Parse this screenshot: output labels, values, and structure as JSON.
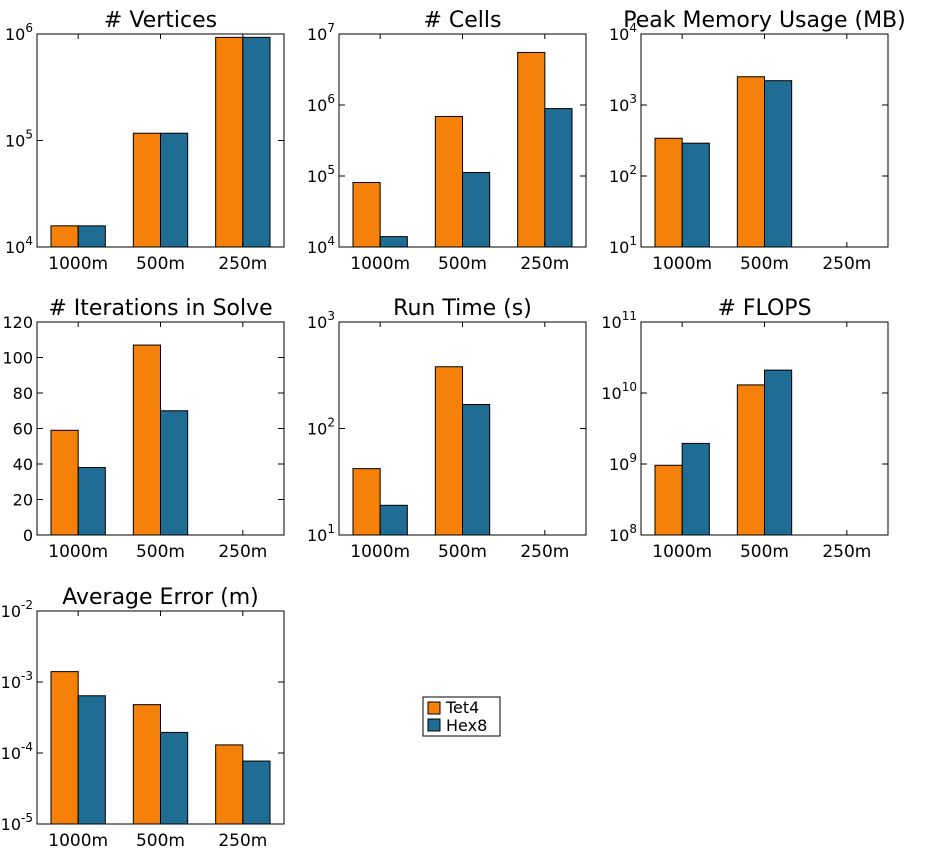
{
  "legend": {
    "placement": "center",
    "entries": [
      {
        "label": "Tet4",
        "color": "#f5800a"
      },
      {
        "label": "Hex8",
        "color": "#1f6c94"
      }
    ]
  },
  "chart_data": [
    {
      "type": "bar",
      "title": "# Vertices",
      "yscale": "log",
      "ylim": [
        10000,
        1000000
      ],
      "ytick_labels": [
        {
          "base": "10",
          "exp": "4"
        },
        {
          "base": "10",
          "exp": "5"
        },
        {
          "base": "10",
          "exp": "6"
        }
      ],
      "categories": [
        "1000m",
        "500m",
        "250m"
      ],
      "series": [
        {
          "name": "Tet4",
          "color": "#f5800a",
          "values": [
            15800,
            117000,
            930000
          ]
        },
        {
          "name": "Hex8",
          "color": "#1f6c94",
          "values": [
            15800,
            117000,
            930000
          ]
        }
      ]
    },
    {
      "type": "bar",
      "title": "# Cells",
      "yscale": "log",
      "ylim": [
        10000,
        10000000
      ],
      "ytick_labels": [
        {
          "base": "10",
          "exp": "4"
        },
        {
          "base": "10",
          "exp": "5"
        },
        {
          "base": "10",
          "exp": "6"
        },
        {
          "base": "10",
          "exp": "7"
        }
      ],
      "categories": [
        "1000m",
        "500m",
        "250m"
      ],
      "series": [
        {
          "name": "Tet4",
          "color": "#f5800a",
          "values": [
            81000,
            690000,
            5500000
          ]
        },
        {
          "name": "Hex8",
          "color": "#1f6c94",
          "values": [
            14000,
            112000,
            890000
          ]
        }
      ]
    },
    {
      "type": "bar",
      "title": "Peak Memory Usage (MB)",
      "yscale": "log",
      "ylim": [
        10,
        10000
      ],
      "ytick_labels": [
        {
          "base": "10",
          "exp": "1"
        },
        {
          "base": "10",
          "exp": "2"
        },
        {
          "base": "10",
          "exp": "3"
        },
        {
          "base": "10",
          "exp": "4"
        }
      ],
      "categories": [
        "1000m",
        "500m",
        "250m"
      ],
      "series": [
        {
          "name": "Tet4",
          "color": "#f5800a",
          "values": [
            340,
            2500,
            null
          ]
        },
        {
          "name": "Hex8",
          "color": "#1f6c94",
          "values": [
            290,
            2200,
            null
          ]
        }
      ]
    },
    {
      "type": "bar",
      "title": "# Iterations in Solve",
      "yscale": "linear",
      "ylim": [
        0,
        120
      ],
      "ytick_labels": [
        {
          "base": "0"
        },
        {
          "base": "20"
        },
        {
          "base": "40"
        },
        {
          "base": "60"
        },
        {
          "base": "80"
        },
        {
          "base": "100"
        },
        {
          "base": "120"
        }
      ],
      "categories": [
        "1000m",
        "500m",
        "250m"
      ],
      "series": [
        {
          "name": "Tet4",
          "color": "#f5800a",
          "values": [
            59,
            107,
            null
          ]
        },
        {
          "name": "Hex8",
          "color": "#1f6c94",
          "values": [
            38,
            70,
            null
          ]
        }
      ]
    },
    {
      "type": "bar",
      "title": "Run Time (s)",
      "yscale": "log",
      "ylim": [
        10,
        1000
      ],
      "ytick_labels": [
        {
          "base": "10",
          "exp": "1"
        },
        {
          "base": "10",
          "exp": "2"
        },
        {
          "base": "10",
          "exp": "3"
        }
      ],
      "categories": [
        "1000m",
        "500m",
        "250m"
      ],
      "series": [
        {
          "name": "Tet4",
          "color": "#f5800a",
          "values": [
            42,
            380,
            null
          ]
        },
        {
          "name": "Hex8",
          "color": "#1f6c94",
          "values": [
            19,
            168,
            null
          ]
        }
      ]
    },
    {
      "type": "bar",
      "title": "# FLOPS",
      "yscale": "log",
      "ylim": [
        100000000,
        100000000000
      ],
      "ytick_labels": [
        {
          "base": "10",
          "exp": "8"
        },
        {
          "base": "10",
          "exp": "9"
        },
        {
          "base": "10",
          "exp": "10"
        },
        {
          "base": "10",
          "exp": "11"
        }
      ],
      "categories": [
        "1000m",
        "500m",
        "250m"
      ],
      "series": [
        {
          "name": "Tet4",
          "color": "#f5800a",
          "values": [
            960000000,
            13000000000,
            null
          ]
        },
        {
          "name": "Hex8",
          "color": "#1f6c94",
          "values": [
            1950000000,
            21000000000,
            null
          ]
        }
      ]
    },
    {
      "type": "bar",
      "title": "Average Error (m)",
      "yscale": "log",
      "ylim": [
        1e-05,
        0.01
      ],
      "ytick_labels": [
        {
          "base": "10",
          "exp": "-5"
        },
        {
          "base": "10",
          "exp": "-4"
        },
        {
          "base": "10",
          "exp": "-3"
        },
        {
          "base": "10",
          "exp": "-2"
        }
      ],
      "categories": [
        "1000m",
        "500m",
        "250m"
      ],
      "series": [
        {
          "name": "Tet4",
          "color": "#f5800a",
          "values": [
            0.0014,
            0.00048,
            0.00013
          ]
        },
        {
          "name": "Hex8",
          "color": "#1f6c94",
          "values": [
            0.00064,
            0.000195,
            7.7e-05
          ]
        }
      ]
    }
  ]
}
